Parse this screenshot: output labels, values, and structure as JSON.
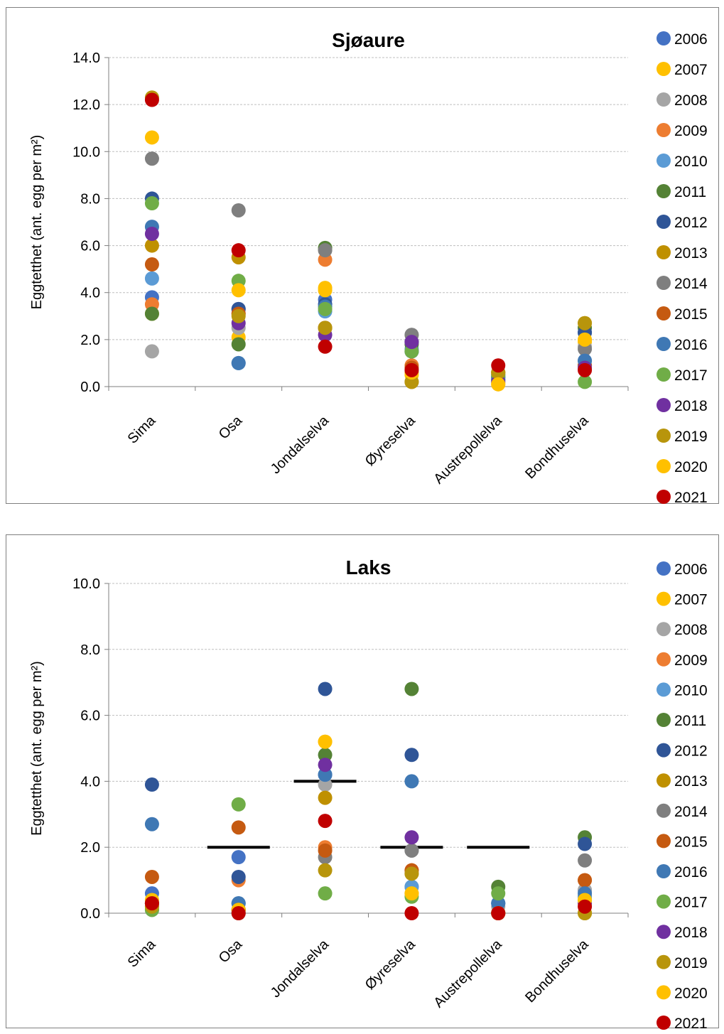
{
  "legend_years": [
    "2006",
    "2007",
    "2008",
    "2009",
    "2010",
    "2011",
    "2012",
    "2013",
    "2014",
    "2015",
    "2016",
    "2017",
    "2018",
    "2019",
    "2020",
    "2021"
  ],
  "colors": [
    "#4472C4",
    "#FFC000",
    "#A5A5A5",
    "#ED7D31",
    "#5B9BD5",
    "#548235",
    "#2F5597",
    "#BF9000",
    "#7F7F7F",
    "#C55A11",
    "#3F78B4",
    "#70AD47",
    "#7030A0",
    "#B8950C",
    "#FFC000",
    "#C00000"
  ],
  "chart_data": [
    {
      "type": "scatter",
      "title": "Sjøaure",
      "ylabel": "Eggtetthet (ant. egg per m²)",
      "categories": [
        "Sima",
        "Osa",
        "Jondalselva",
        "Øyreselva",
        "Austrepollelva",
        "Bondhuselva"
      ],
      "ylim": [
        0,
        14
      ],
      "yticks": [
        "0.0",
        "2.0",
        "4.0",
        "6.0",
        "8.0",
        "10.0",
        "12.0",
        "14.0"
      ],
      "grid": true,
      "legend_position": "right",
      "series": [
        {
          "name": "2006",
          "values": [
            3.8,
            3.3,
            3.7,
            1.5,
            0.3,
            2.3
          ]
        },
        {
          "name": "2007",
          "values": [
            3.1,
            2.1,
            4.2,
            0.5,
            0.1,
            1.9
          ]
        },
        {
          "name": "2008",
          "values": [
            1.5,
            2.5,
            5.8,
            2.2,
            0.2,
            1.7
          ]
        },
        {
          "name": "2009",
          "values": [
            3.5,
            3.1,
            5.4,
            0.9,
            0.5,
            0.9
          ]
        },
        {
          "name": "2010",
          "values": [
            4.6,
            1.0,
            3.2,
            1.6,
            0.3,
            1.1
          ]
        },
        {
          "name": "2011",
          "values": [
            3.1,
            1.8,
            5.9,
            1.8,
            0.4,
            2.5
          ]
        },
        {
          "name": "2012",
          "values": [
            8.0,
            3.3,
            3.5,
            1.9,
            0.4,
            2.3
          ]
        },
        {
          "name": "2013",
          "values": [
            6.0,
            5.5,
            2.5,
            0.2,
            0.6,
            2.7
          ]
        },
        {
          "name": "2014",
          "values": [
            9.7,
            7.5,
            5.8,
            2.2,
            0.5,
            1.6
          ]
        },
        {
          "name": "2015",
          "values": [
            5.2,
            3.1,
            2.5,
            0.8,
            0.6,
            0.9
          ]
        },
        {
          "name": "2016",
          "values": [
            6.8,
            1.0,
            3.4,
            1.5,
            0.3,
            1.1
          ]
        },
        {
          "name": "2017",
          "values": [
            7.8,
            4.5,
            3.3,
            1.5,
            0.5,
            0.2
          ]
        },
        {
          "name": "2018",
          "values": [
            6.5,
            2.7,
            2.2,
            1.9,
            0.2,
            0.8
          ]
        },
        {
          "name": "2019",
          "values": [
            12.3,
            3.0,
            2.5,
            0.2,
            0.6,
            2.7
          ]
        },
        {
          "name": "2020",
          "values": [
            10.6,
            4.1,
            4.1,
            0.6,
            0.1,
            2.0
          ]
        },
        {
          "name": "2021",
          "values": [
            12.2,
            5.8,
            1.7,
            0.7,
            0.9,
            0.7
          ]
        }
      ]
    },
    {
      "type": "scatter",
      "title": "Laks",
      "ylabel": "Eggtetthet (ant. egg per m²)",
      "categories": [
        "Sima",
        "Osa",
        "Jondalselva",
        "Øyreselva",
        "Austrepollelva",
        "Bondhuselva"
      ],
      "ylim": [
        0,
        10
      ],
      "yticks": [
        "0.0",
        "2.0",
        "4.0",
        "6.0",
        "8.0",
        "10.0"
      ],
      "grid": true,
      "legend_position": "right",
      "target_lines": [
        {
          "category": "Osa",
          "value": 2.0
        },
        {
          "category": "Jondalselva",
          "value": 4.0
        },
        {
          "category": "Øyreselva",
          "value": 2.0
        },
        {
          "category": "Austrepollelva",
          "value": 2.0
        }
      ],
      "series": [
        {
          "name": "2006",
          "values": [
            0.6,
            1.7,
            4.2,
            0.8,
            0.3,
            0.7
          ]
        },
        {
          "name": "2007",
          "values": [
            0.4,
            0.1,
            5.2,
            0.6,
            0.0,
            0.5
          ]
        },
        {
          "name": "2008",
          "values": [
            0.1,
            0.3,
            3.9,
            1.9,
            0.2,
            0.7
          ]
        },
        {
          "name": "2009",
          "values": [
            0.3,
            1.0,
            2.0,
            1.3,
            0.0,
            1.0
          ]
        },
        {
          "name": "2010",
          "values": [
            0.2,
            0.3,
            4.2,
            0.8,
            0.3,
            0.5
          ]
        },
        {
          "name": "2011",
          "values": [
            0.3,
            0.0,
            4.8,
            6.8,
            0.8,
            2.3
          ]
        },
        {
          "name": "2012",
          "values": [
            3.9,
            1.1,
            6.8,
            4.8,
            0.0,
            2.1
          ]
        },
        {
          "name": "2013",
          "values": [
            0.3,
            0.1,
            3.5,
            1.2,
            0.0,
            0.0
          ]
        },
        {
          "name": "2014",
          "values": [
            0.3,
            0.1,
            1.7,
            1.9,
            0.0,
            1.6
          ]
        },
        {
          "name": "2015",
          "values": [
            1.1,
            2.6,
            1.9,
            1.3,
            0.0,
            1.0
          ]
        },
        {
          "name": "2016",
          "values": [
            2.7,
            0.3,
            4.2,
            4.0,
            0.3,
            0.6
          ]
        },
        {
          "name": "2017",
          "values": [
            0.1,
            3.3,
            0.6,
            0.5,
            0.6,
            0.4
          ]
        },
        {
          "name": "2018",
          "values": [
            0.3,
            0.1,
            4.5,
            2.3,
            0.0,
            0.3
          ]
        },
        {
          "name": "2019",
          "values": [
            0.2,
            0.1,
            1.3,
            1.2,
            0.0,
            0.0
          ]
        },
        {
          "name": "2020",
          "values": [
            0.3,
            0.1,
            5.2,
            0.6,
            0.0,
            0.4
          ]
        },
        {
          "name": "2021",
          "values": [
            0.3,
            0.0,
            2.8,
            0.0,
            0.0,
            0.2
          ]
        }
      ]
    }
  ]
}
